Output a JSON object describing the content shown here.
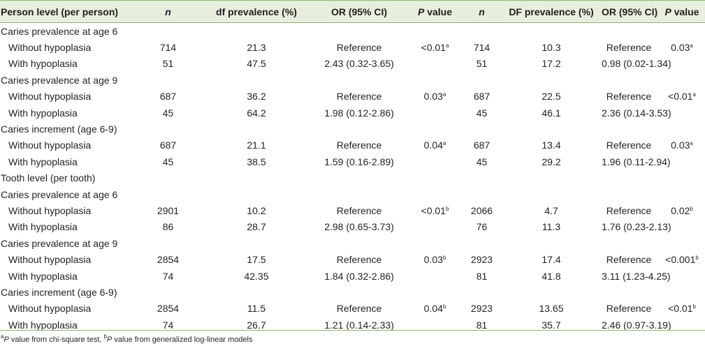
{
  "headers": {
    "person_level": "Person level (per person)",
    "n": "n",
    "df_prev": "df prevalence (%)",
    "or": "OR (95% CI)",
    "p_italic": "P",
    "p_rest": " value",
    "n2": "n",
    "DF_prev": "DF prevalence (%)",
    "or2": "OR (95% CI)",
    "p2_italic": "P",
    "p2_rest": " value"
  },
  "rows": [
    {
      "type": "section",
      "label": "Caries prevalence at age 6"
    },
    {
      "type": "data",
      "label": "Without hypoplasia",
      "n1": "714",
      "prev1": "21.3",
      "or1": "Reference",
      "p1": "<0.01",
      "p1_sup": "a",
      "n2": "714",
      "prev2": "10.3",
      "or2": "Reference",
      "p2": "0.03",
      "p2_sup": "a"
    },
    {
      "type": "data",
      "label": "With hypoplasia",
      "n1": "51",
      "prev1": "47.5",
      "or1": "2.43 (0.32-3.65)",
      "p1": "",
      "p1_sup": "",
      "n2": "51",
      "prev2": "17.2",
      "or2": "0.98 (0.02-1.34)",
      "p2": "",
      "p2_sup": ""
    },
    {
      "type": "section",
      "label": "Caries prevalence at age 9"
    },
    {
      "type": "data",
      "label": "Without hypoplasia",
      "n1": "687",
      "prev1": "36.2",
      "or1": "Reference",
      "p1": "0.03",
      "p1_sup": "a",
      "n2": "687",
      "prev2": "22.5",
      "or2": "Reference",
      "p2": "<0.01",
      "p2_sup": "a"
    },
    {
      "type": "data",
      "label": "With hypoplasia",
      "n1": "45",
      "prev1": "64.2",
      "or1": "1.98 (0.12-2.86)",
      "p1": "",
      "p1_sup": "",
      "n2": "45",
      "prev2": "46.1",
      "or2": "2.36 (0.14-3.53)",
      "p2": "",
      "p2_sup": ""
    },
    {
      "type": "section",
      "label": "Caries increment (age 6-9)"
    },
    {
      "type": "data",
      "label": "Without hypoplasia",
      "n1": "687",
      "prev1": "21.1",
      "or1": "Reference",
      "p1": "0.04",
      "p1_sup": "a",
      "n2": "687",
      "prev2": "13.4",
      "or2": "Reference",
      "p2": "0.03",
      "p2_sup": "a"
    },
    {
      "type": "data",
      "label": "With hypoplasia",
      "n1": "45",
      "prev1": "38.5",
      "or1": "1.59 (0.16-2.89)",
      "p1": "",
      "p1_sup": "",
      "n2": "45",
      "prev2": "29.2",
      "or2": "1.96 (0.11-2.94)",
      "p2": "",
      "p2_sup": ""
    },
    {
      "type": "section",
      "label": "Tooth level (per tooth)"
    },
    {
      "type": "section",
      "label": "Caries prevalence at age 6"
    },
    {
      "type": "data",
      "label": "Without hypoplasia",
      "n1": "2901",
      "prev1": "10.2",
      "or1": "Reference",
      "p1": "<0.01",
      "p1_sup": "b",
      "n2": "2066",
      "prev2": "4.7",
      "or2": "Reference",
      "p2": "0.02",
      "p2_sup": "b"
    },
    {
      "type": "data",
      "label": "With hypoplasia",
      "n1": "86",
      "prev1": "28.7",
      "or1": "2.98 (0.65-3.73)",
      "p1": "",
      "p1_sup": "",
      "n2": "76",
      "prev2": "11.3",
      "or2": "1.76 (0.23-2.13)",
      "p2": "",
      "p2_sup": ""
    },
    {
      "type": "section",
      "label": "Caries prevalence at age 9"
    },
    {
      "type": "data",
      "label": "Without hypoplasia",
      "n1": "2854",
      "prev1": "17.5",
      "or1": "Reference",
      "p1": "0.03",
      "p1_sup": "b",
      "n2": "2923",
      "prev2": "17.4",
      "or2": "Reference",
      "p2": "<0.001",
      "p2_sup": "b"
    },
    {
      "type": "data",
      "label": "With hypoplasia",
      "n1": "74",
      "prev1": "42.35",
      "or1": "1.84 (0.32-2.86)",
      "p1": "",
      "p1_sup": "",
      "n2": "81",
      "prev2": "41.8",
      "or2": "3.11 (1.23-4.25)",
      "p2": "",
      "p2_sup": ""
    },
    {
      "type": "section",
      "label": "Caries increment (age 6-9)"
    },
    {
      "type": "data",
      "label": "Without hypoplasia",
      "n1": "2854",
      "prev1": "11.5",
      "or1": "Reference",
      "p1": "0.04",
      "p1_sup": "b",
      "n2": "2923",
      "prev2": "13.65",
      "or2": "Reference",
      "p2": "<0.01",
      "p2_sup": "b"
    },
    {
      "type": "data",
      "label": "With hypoplasia",
      "n1": "74",
      "prev1": "26.7",
      "or1": "1.21 (0.14-2.33)",
      "p1": "",
      "p1_sup": "",
      "n2": "81",
      "prev2": "35.7",
      "or2": "2.46 (0.97-3.19)",
      "p2": "",
      "p2_sup": ""
    }
  ],
  "footnote": {
    "a_sup": "a",
    "a_p": "P",
    "a_text": " value from chi-square test, ",
    "b_sup": "b",
    "b_p": "P",
    "b_text": " value from generalized log-linear models"
  }
}
